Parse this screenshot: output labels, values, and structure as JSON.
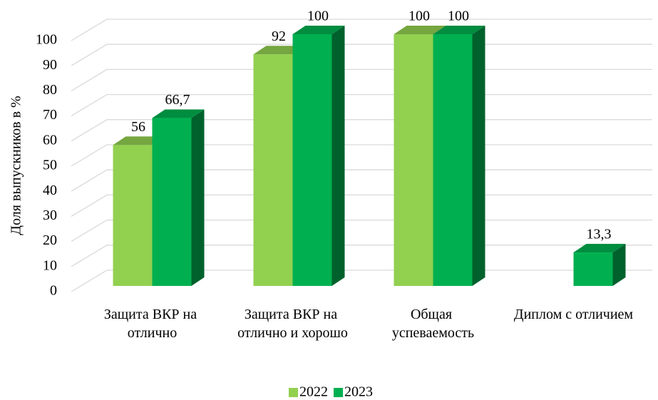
{
  "chart_data": {
    "type": "bar3d",
    "y_axis_label": "Доля выпускников в %",
    "categories": [
      "Защита ВКР на отлично",
      "Защита ВКР на отлично и хорошо",
      "Общая успеваемость",
      "Диплом с отличием"
    ],
    "series": [
      {
        "name": "2022",
        "color": "#92d050",
        "values": [
          56,
          92,
          100,
          null
        ],
        "value_labels": [
          "56",
          "92",
          "100",
          null
        ]
      },
      {
        "name": "2023",
        "color": "#00b050",
        "values": [
          66.7,
          100,
          100,
          13.3
        ],
        "value_labels": [
          "66,7",
          "100",
          "100",
          "13,3"
        ]
      }
    ],
    "ylim": [
      0,
      100
    ],
    "yticks": [
      0,
      10,
      20,
      30,
      40,
      50,
      60,
      70,
      80,
      90,
      100
    ],
    "grid": true,
    "legend": "bottom"
  }
}
